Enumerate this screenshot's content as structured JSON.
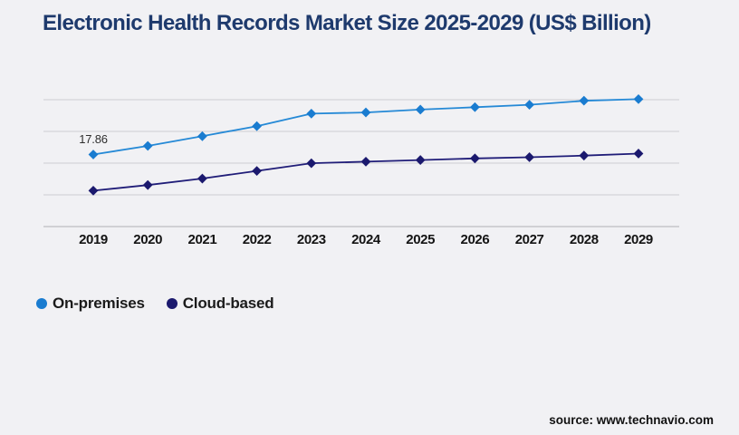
{
  "colors": {
    "background": "#f1f1f4",
    "title": "#1e3a6d",
    "gridline": "#cdcdd2",
    "axis_line": "#aeaeb4",
    "tick_label": "#141414"
  },
  "footer": {
    "source": "source: www.technavio.com"
  },
  "chart_data": {
    "type": "line",
    "title": "Electronic Health Records Market Size 2025-2029 (US$ Billion)",
    "categories": [
      "2019",
      "2020",
      "2021",
      "2022",
      "2023",
      "2024",
      "2025",
      "2026",
      "2027",
      "2028",
      "2029"
    ],
    "series": [
      {
        "name": "On-premises",
        "color": "#1a7cd0",
        "line_color": "#2589d6",
        "marker": "diamond",
        "values": [
          17.86,
          20.0,
          22.4,
          24.9,
          28.0,
          28.3,
          29.0,
          29.6,
          30.2,
          31.2,
          31.6
        ],
        "point_labels": [
          {
            "index": 0,
            "text": "17.86"
          }
        ]
      },
      {
        "name": "Cloud-based",
        "color": "#1b196e",
        "line_color": "#201d78",
        "marker": "diamond",
        "values": [
          8.9,
          10.3,
          11.9,
          13.8,
          15.7,
          16.1,
          16.5,
          16.9,
          17.2,
          17.6,
          18.1
        ],
        "point_labels": []
      }
    ],
    "xlabel": "",
    "ylabel": "",
    "ylim": [
      0,
      35
    ],
    "y_axis_labels_visible": false,
    "grid": "horizontal",
    "legend_position": "bottom-left"
  }
}
